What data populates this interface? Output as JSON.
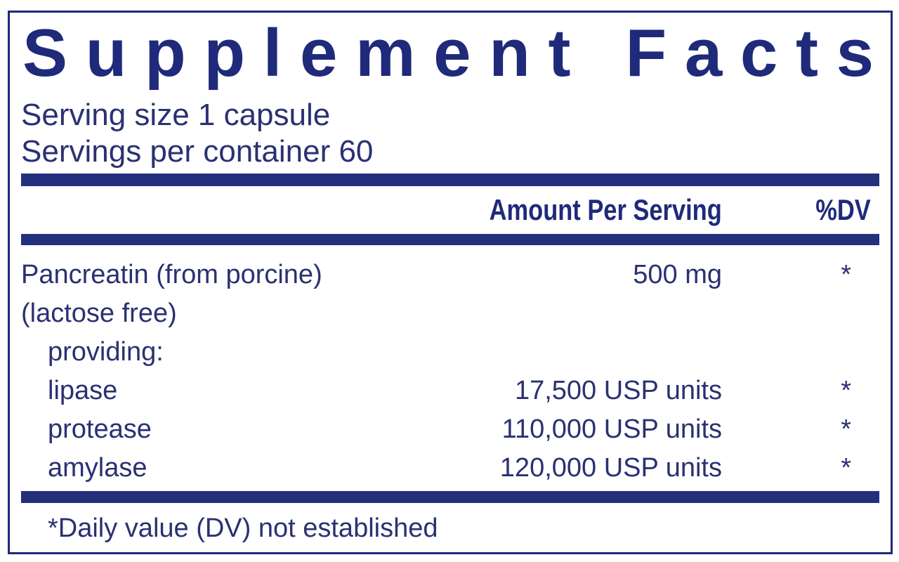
{
  "title": "Supplement Facts",
  "serving_size": "Serving size  1 capsule",
  "servings_per_container": "Servings per container  60",
  "header": {
    "amount": "Amount Per Serving",
    "dv": "%DV"
  },
  "rows": [
    {
      "label": "Pancreatin (from porcine)",
      "amount": "500 mg",
      "dv": "*"
    },
    {
      "label": "(lactose free)",
      "amount": "",
      "dv": ""
    },
    {
      "label": "providing:",
      "amount": "",
      "dv": ""
    },
    {
      "label": "lipase",
      "amount": "17,500 USP units",
      "dv": "*"
    },
    {
      "label": "protease",
      "amount": "110,000 USP units",
      "dv": "*"
    },
    {
      "label": "amylase",
      "amount": "120,000 USP units",
      "dv": "*"
    }
  ],
  "footnote": "*Daily value (DV) not established",
  "colors": {
    "navy": "#1f2a7a",
    "text": "#2a3172"
  }
}
